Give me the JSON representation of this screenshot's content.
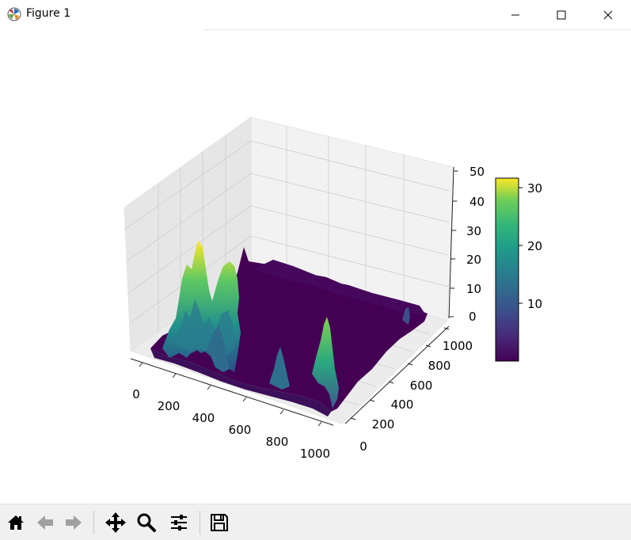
{
  "window": {
    "title": "Figure 1"
  },
  "chart_data": {
    "type": "surface3d",
    "x_ticks": [
      "0",
      "200",
      "400",
      "600",
      "800",
      "1000"
    ],
    "y_ticks": [
      "0",
      "200",
      "400",
      "600",
      "800",
      "1000"
    ],
    "z_ticks": [
      "0",
      "10",
      "20",
      "30",
      "40",
      "50"
    ],
    "xlim": [
      0,
      1000
    ],
    "ylim": [
      0,
      1000
    ],
    "zlim": [
      0,
      50
    ],
    "colormap": "viridis",
    "colorbar_ticks": [
      "10",
      "20",
      "30"
    ],
    "colorbar_range": [
      0.5,
      32
    ],
    "peaks": [
      {
        "x": 150,
        "y": 900,
        "z": 33
      },
      {
        "x": 270,
        "y": 850,
        "z": 31
      },
      {
        "x": 120,
        "y": 700,
        "z": 28
      },
      {
        "x": 780,
        "y": 300,
        "z": 22
      },
      {
        "x": 500,
        "y": 600,
        "z": 12
      }
    ],
    "grid": true
  },
  "toolbar": {
    "buttons": [
      {
        "name": "home-button",
        "icon": "home-icon"
      },
      {
        "name": "back-button",
        "icon": "arrow-left-icon"
      },
      {
        "name": "forward-button",
        "icon": "arrow-right-icon"
      },
      {
        "name": "pan-button",
        "icon": "move-icon"
      },
      {
        "name": "zoom-button",
        "icon": "magnifier-icon"
      },
      {
        "name": "configure-subplots-button",
        "icon": "sliders-icon"
      },
      {
        "name": "save-button",
        "icon": "floppy-disk-icon"
      }
    ]
  }
}
